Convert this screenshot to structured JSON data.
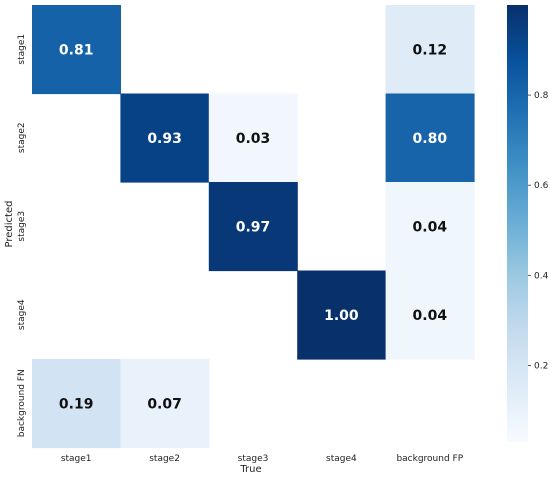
{
  "chart_data": {
    "type": "heatmap",
    "title": "",
    "xlabel": "True",
    "ylabel": "Predicted",
    "x_categories": [
      "stage1",
      "stage2",
      "stage3",
      "stage4",
      "background FP"
    ],
    "y_categories": [
      "stage1",
      "stage2",
      "stage3",
      "stage4",
      "background FN"
    ],
    "values": [
      [
        0.81,
        null,
        null,
        null,
        0.12
      ],
      [
        null,
        0.93,
        0.03,
        null,
        0.8
      ],
      [
        null,
        null,
        0.97,
        null,
        0.04
      ],
      [
        null,
        null,
        null,
        1.0,
        0.04
      ],
      [
        0.19,
        0.07,
        null,
        null,
        null
      ]
    ],
    "value_labels": [
      [
        "0.81",
        "",
        "",
        "",
        "0.12"
      ],
      [
        "",
        "0.93",
        "0.03",
        "",
        "0.80"
      ],
      [
        "",
        "",
        "0.97",
        "",
        "0.04"
      ],
      [
        "",
        "",
        "",
        "1.00",
        "0.04"
      ],
      [
        "0.19",
        "0.07",
        "",
        "",
        ""
      ]
    ],
    "colormap": "Blues",
    "vmin": 0,
    "vmax": 1,
    "colorbar": {
      "ticks": [
        0.2,
        0.4,
        0.6,
        0.8
      ],
      "tick_labels": [
        "0.2",
        "0.4",
        "0.6",
        "0.8"
      ]
    }
  }
}
